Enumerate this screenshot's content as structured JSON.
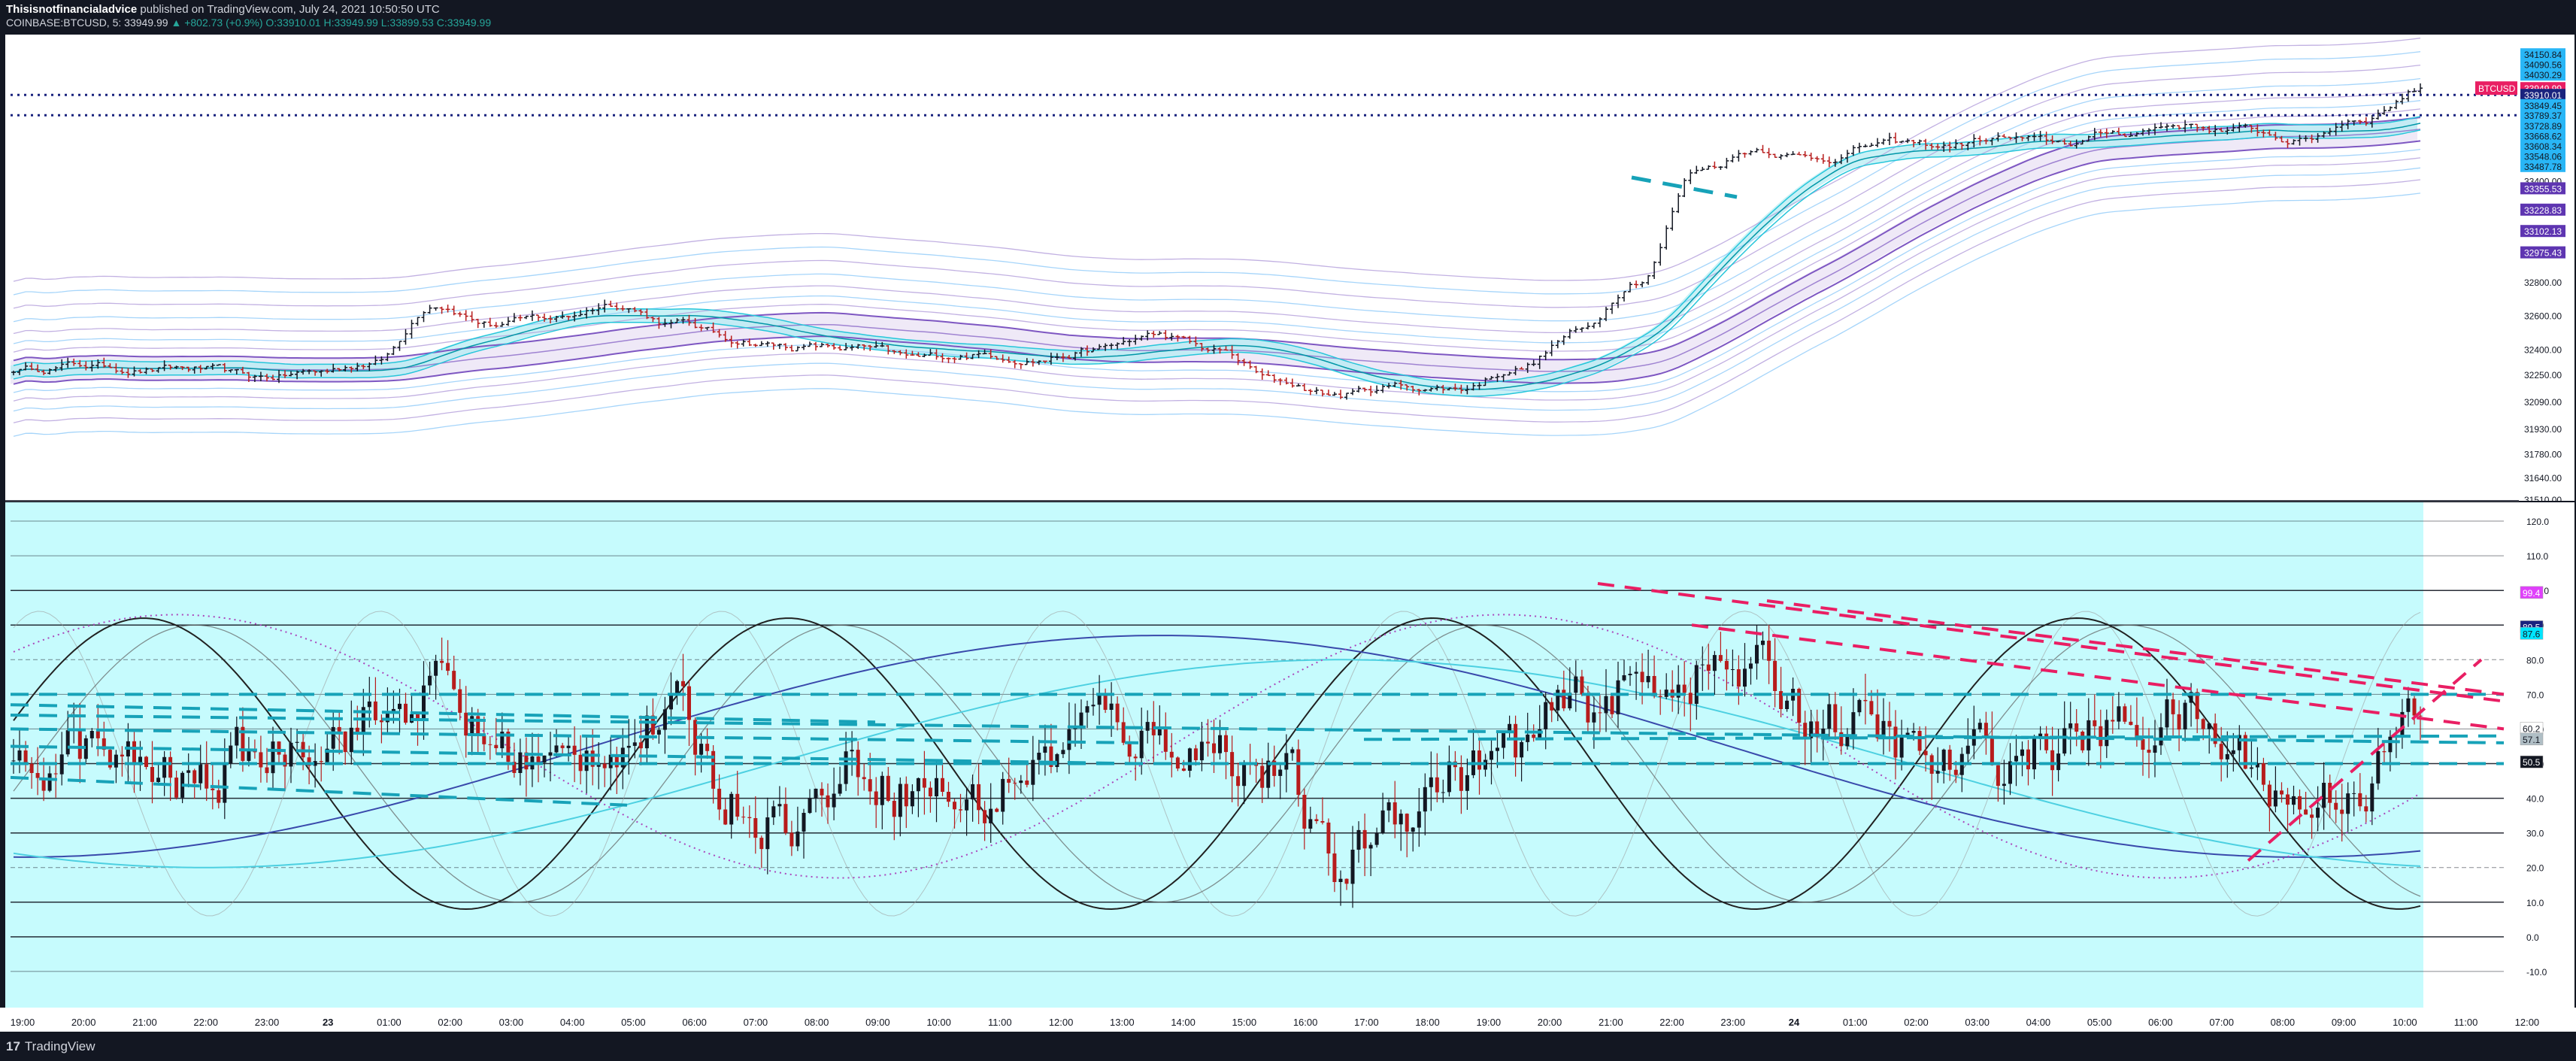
{
  "header": {
    "author": "Thisisnotfinancialadvice",
    "published": " published on TradingView.com, July 24, 2021 10:50:50 UTC",
    "symbol": "COINBASE:BTCUSD, 5",
    "price": "33949.99",
    "change": "▲ +802.73 (+0.9%)",
    "open": "O:33910.01",
    "high": "H:33949.99",
    "low": "L:33899.53",
    "close": "C:33949.99"
  },
  "footer": {
    "brand": "TradingView",
    "logo": "17"
  },
  "colors": {
    "background_price": "#ffffff",
    "background_osc": "#c6fbfd",
    "up_candle": "#131722",
    "down_candle": "#b71c1c",
    "cyan_dash": "#17a2b8",
    "pink_dash": "#e91e63",
    "blue_line": "#3949ab",
    "cyan_line": "#4dd0e1",
    "purple_band": "#7e57c2"
  },
  "chart_data": [
    {
      "type": "line",
      "panel": "price",
      "symbol": "BTCUSD",
      "ylim": [
        31510,
        34250
      ],
      "y_ticks": [
        "34150.84",
        "34090.56",
        "34030.29",
        "33949.99",
        "33910.01",
        "33849.45",
        "33789.37",
        "33728.89",
        "33668.62",
        "33608.34",
        "33548.06",
        "33487.78",
        "33400.00",
        "33355.53",
        "33228.83",
        "33102.13",
        "32975.43",
        "32800.00",
        "32600.00",
        "32400.00",
        "32250.00",
        "32090.00",
        "31930.00",
        "31780.00",
        "31640.00",
        "31510.00"
      ],
      "last_price_label": "BTCUSD",
      "last_price": "33949.99",
      "dotted_levels": [
        33910.01,
        33789.37
      ],
      "series": [
        {
          "x": [
            "19:00",
            "20:00",
            "21:00",
            "22:00",
            "23:00",
            "23",
            "01:00",
            "02:00",
            "03:00",
            "04:00",
            "05:00",
            "06:00",
            "07:00",
            "08:00",
            "09:00",
            "10:00",
            "11:00",
            "12:00",
            "13:00",
            "14:00",
            "15:00",
            "16:00",
            "17:00",
            "18:00",
            "19:00",
            "20:00",
            "21:00",
            "22:00",
            "23:00",
            "24",
            "01:00",
            "02:00",
            "03:00",
            "04:00",
            "05:00",
            "06:00",
            "07:00",
            "08:00",
            "09:00",
            "10:00",
            "10:50"
          ],
          "values": [
            32280,
            32310,
            32290,
            32280,
            32220,
            32260,
            32330,
            32690,
            32560,
            32580,
            32680,
            32560,
            32460,
            32420,
            32400,
            32330,
            32370,
            32360,
            32400,
            32480,
            32380,
            32200,
            32130,
            32180,
            32170,
            32300,
            32500,
            32830,
            33480,
            33600,
            33540,
            33620,
            33600,
            33650,
            33610,
            33680,
            33740,
            33700,
            33640,
            33780,
            33949.99
          ]
        }
      ]
    },
    {
      "type": "line",
      "panel": "oscillator",
      "ylim": [
        -20,
        125
      ],
      "y_ticks": [
        "120.0",
        "110.0",
        "100.0",
        "90.0",
        "80.0",
        "70.0",
        "60.0",
        "50.0",
        "40.0",
        "30.0",
        "20.0",
        "10.0",
        "0.0",
        "-10.0"
      ],
      "badges": [
        "99.4",
        "89.5",
        "87.6",
        "60.2",
        "57.1",
        "50.5"
      ],
      "x_ticks": [
        "19:00",
        "20:00",
        "21:00",
        "22:00",
        "23:00",
        "23",
        "01:00",
        "02:00",
        "03:00",
        "04:00",
        "05:00",
        "06:00",
        "07:00",
        "08:00",
        "09:00",
        "10:00",
        "11:00",
        "12:00",
        "13:00",
        "14:00",
        "15:00",
        "16:00",
        "17:00",
        "18:00",
        "19:00",
        "20:00",
        "21:00",
        "22:00",
        "23:00",
        "24",
        "01:00",
        "02:00",
        "03:00",
        "04:00",
        "05:00",
        "06:00",
        "07:00",
        "08:00",
        "09:00",
        "10:00",
        "11:00",
        "12:00"
      ],
      "series": [
        {
          "x": [
            "19:00",
            "20:00",
            "21:00",
            "22:00",
            "23:00",
            "23",
            "01:00",
            "02:00",
            "03:00",
            "04:00",
            "05:00",
            "06:00",
            "07:00",
            "08:00",
            "09:00",
            "10:00",
            "11:00",
            "12:00",
            "13:00",
            "14:00",
            "15:00",
            "16:00",
            "17:00",
            "18:00",
            "19:00",
            "20:00",
            "21:00",
            "22:00",
            "23:00",
            "24",
            "01:00",
            "02:00",
            "03:00",
            "04:00",
            "05:00",
            "06:00",
            "07:00",
            "08:00",
            "09:00",
            "10:00",
            "10:50"
          ],
          "values": [
            45,
            55,
            48,
            44,
            52,
            60,
            62,
            72,
            55,
            48,
            58,
            62,
            40,
            34,
            50,
            44,
            38,
            50,
            62,
            58,
            55,
            48,
            18,
            38,
            48,
            54,
            66,
            72,
            78,
            75,
            64,
            58,
            48,
            52,
            56,
            60,
            64,
            52,
            38,
            46,
            63
          ]
        }
      ]
    }
  ]
}
